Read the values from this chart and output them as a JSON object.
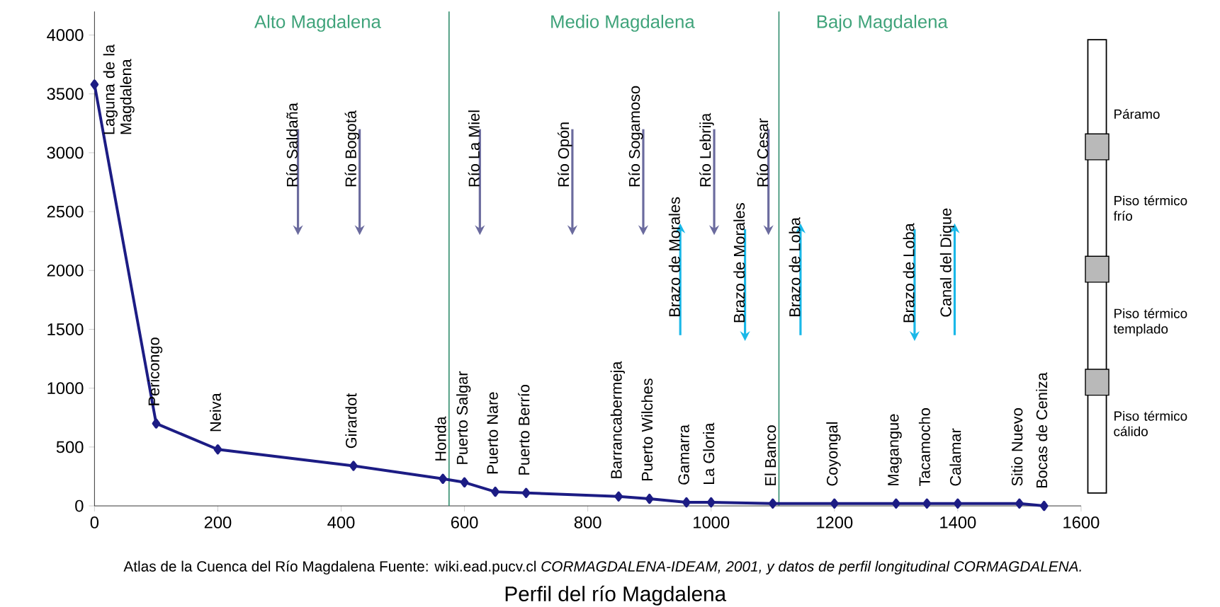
{
  "chart_data": {
    "type": "line",
    "title": "Perfil del río Magdalena",
    "x": [
      0,
      100,
      200,
      420,
      565,
      600,
      650,
      700,
      850,
      900,
      960,
      1000,
      1100,
      1200,
      1300,
      1350,
      1400,
      1500,
      1540
    ],
    "series": [
      {
        "color": "#1c1c84",
        "values": [
          3580,
          700,
          480,
          340,
          230,
          200,
          120,
          110,
          80,
          60,
          30,
          30,
          20,
          20,
          20,
          20,
          20,
          20,
          0
        ]
      }
    ],
    "xlim": [
      0,
      1600
    ],
    "xticks": [
      0,
      200,
      400,
      600,
      800,
      1000,
      1200,
      1400,
      1600
    ],
    "ylim": [
      0,
      4200
    ],
    "yticks": [
      0,
      500,
      1000,
      1500,
      2000,
      2500,
      3000,
      3500,
      4000
    ],
    "marker": "diamond",
    "line_style": "solid",
    "ref_lines": [
      {
        "axis": "x",
        "value": 575,
        "color": "#2e8b6b"
      },
      {
        "axis": "x",
        "value": 1110,
        "color": "#2e8b6b"
      }
    ],
    "annotations": [
      {
        "text": "Laguna de la Magdalena",
        "x": 0,
        "y": 3580
      },
      {
        "text": "Pericongo",
        "x": 100,
        "y": 700
      },
      {
        "text": "Neiva",
        "x": 200,
        "y": 480
      },
      {
        "text": "Girardot",
        "x": 420,
        "y": 340
      },
      {
        "text": "Honda",
        "x": 565,
        "y": 230
      },
      {
        "text": "Puerto Salgar",
        "x": 600,
        "y": 200
      },
      {
        "text": "Puerto Nare",
        "x": 650,
        "y": 120
      },
      {
        "text": "Puerto Berrío",
        "x": 700,
        "y": 110
      },
      {
        "text": "Barrancabermeja",
        "x": 850,
        "y": 80
      },
      {
        "text": "Puerto Wilches",
        "x": 900,
        "y": 60
      },
      {
        "text": "Gamarra",
        "x": 960,
        "y": 30
      },
      {
        "text": "La Gloria",
        "x": 1000,
        "y": 30
      },
      {
        "text": "El Banco",
        "x": 1100,
        "y": 20
      },
      {
        "text": "Coyongal",
        "x": 1200,
        "y": 20
      },
      {
        "text": "Magangue",
        "x": 1300,
        "y": 20
      },
      {
        "text": "Tacamocho",
        "x": 1350,
        "y": 20
      },
      {
        "text": "Calamar",
        "x": 1400,
        "y": 20
      },
      {
        "text": "Sitio Nuevo",
        "x": 1500,
        "y": 20
      },
      {
        "text": "Bocas de Ceniza",
        "x": 1540,
        "y": 0
      },
      "Río Saldaña",
      "Río Bogotá",
      "Río La Miel",
      "Río Opón",
      "Río Sogamoso",
      "Río Lebrija",
      "Río Cesar",
      "Brazo de Morales",
      "Brazo de Morales",
      "Brazo de Loba",
      "Brazo de Loba",
      "Canal del Dique",
      "Alto Magdalena",
      "Medio Magdalena",
      "Bajo Magdalena",
      "Páramo",
      "Piso térmico frío",
      "Piso térmico templado",
      "Piso térmico cálido",
      "Atlas de la Cuenca del Río Magdalena  Fuente: wiki.ead.pucv.cl *CORMAGDALENA-IDEAM, 2001, y datos de perfil longitudinal CORMAGDALENA.*"
    ]
  }
}
